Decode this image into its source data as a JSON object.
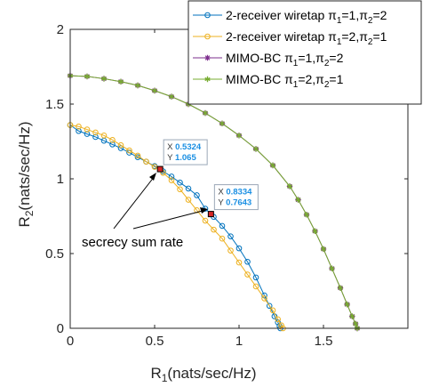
{
  "chart_data": {
    "type": "line",
    "xlabel_main": "R",
    "xlabel_sub": "1",
    "xlabel_unit": "(nats/sec/Hz)",
    "ylabel_main": "R",
    "ylabel_sub": "2",
    "ylabel_unit": "(nats/sec/Hz)",
    "xlim": [
      0,
      2
    ],
    "ylim": [
      0,
      2
    ],
    "xticks": [
      0,
      0.5,
      1,
      1.5
    ],
    "yticks": [
      0,
      0.5,
      1,
      1.5,
      2
    ],
    "xtick_labels": [
      "0",
      "0.5",
      "1",
      "1.5"
    ],
    "ytick_labels": [
      "0",
      "0.5",
      "1",
      "1.5",
      "2"
    ],
    "grid": false,
    "legend_position": "top-right",
    "series": [
      {
        "name": "2-receiver wiretap π1=1,π2=2",
        "legend": {
          "base": "2-receiver wiretap ",
          "pi": "π",
          "s1": "1",
          "mid": "=1,",
          "s2": "2",
          "end": "=2"
        },
        "color": "#0072BD",
        "marker": "circle",
        "x": [
          0.0,
          0.05,
          0.1,
          0.15,
          0.2,
          0.25,
          0.3,
          0.35,
          0.4,
          0.45,
          0.5,
          0.5324,
          0.55,
          0.6,
          0.65,
          0.7,
          0.75,
          0.8,
          0.8334,
          0.85,
          0.9,
          0.95,
          1.0,
          1.05,
          1.1,
          1.15,
          1.18,
          1.21,
          1.23,
          1.24,
          1.245
        ],
        "y": [
          1.36,
          1.32,
          1.3,
          1.28,
          1.255,
          1.23,
          1.205,
          1.175,
          1.145,
          1.115,
          1.085,
          1.065,
          1.05,
          1.015,
          0.975,
          0.935,
          0.89,
          0.8,
          0.7643,
          0.745,
          0.685,
          0.615,
          0.535,
          0.445,
          0.34,
          0.22,
          0.15,
          0.08,
          0.04,
          0.015,
          0.0
        ]
      },
      {
        "name": "2-receiver wiretap π1=2,π2=1",
        "legend": {
          "base": "2-receiver wiretap ",
          "pi": "π",
          "s1": "1",
          "mid": "=2,",
          "s2": "2",
          "end": "=1"
        },
        "color": "#EDB120",
        "marker": "circle",
        "x": [
          0.0,
          0.05,
          0.1,
          0.15,
          0.2,
          0.25,
          0.3,
          0.35,
          0.4,
          0.45,
          0.5,
          0.5324,
          0.55,
          0.6,
          0.65,
          0.7,
          0.75,
          0.8,
          0.85,
          0.9,
          0.95,
          1.0,
          1.05,
          1.1,
          1.15,
          1.2,
          1.23,
          1.25,
          1.26
        ],
        "y": [
          1.36,
          1.35,
          1.33,
          1.31,
          1.29,
          1.26,
          1.225,
          1.19,
          1.155,
          1.115,
          1.08,
          1.065,
          1.04,
          0.99,
          0.93,
          0.86,
          0.79,
          0.72,
          0.66,
          0.6,
          0.52,
          0.44,
          0.36,
          0.28,
          0.2,
          0.12,
          0.06,
          0.02,
          0.0
        ]
      },
      {
        "name": "MIMO-BC π1=1,π2=2",
        "legend": {
          "base": "MIMO-BC ",
          "pi": "π",
          "s1": "1",
          "mid": "=1,",
          "s2": "2",
          "end": "=2"
        },
        "color": "#7E2F8E",
        "marker": "star",
        "x": [
          0.0,
          0.1,
          0.2,
          0.3,
          0.4,
          0.5,
          0.6,
          0.7,
          0.8,
          0.9,
          1.0,
          1.1,
          1.2,
          1.3,
          1.35,
          1.4,
          1.45,
          1.5,
          1.55,
          1.6,
          1.64,
          1.67,
          1.69,
          1.7
        ],
        "y": [
          1.69,
          1.685,
          1.67,
          1.65,
          1.625,
          1.59,
          1.55,
          1.5,
          1.44,
          1.37,
          1.29,
          1.2,
          1.09,
          0.95,
          0.86,
          0.76,
          0.65,
          0.53,
          0.4,
          0.27,
          0.16,
          0.08,
          0.03,
          0.0
        ]
      },
      {
        "name": "MIMO-BC π1=2,π2=1",
        "legend": {
          "base": "MIMO-BC ",
          "pi": "π",
          "s1": "1",
          "mid": "=2,",
          "s2": "2",
          "end": "=1"
        },
        "color": "#77AC30",
        "marker": "asterisk",
        "x": [
          0.0,
          0.1,
          0.2,
          0.3,
          0.4,
          0.5,
          0.6,
          0.7,
          0.8,
          0.9,
          1.0,
          1.1,
          1.2,
          1.3,
          1.35,
          1.4,
          1.45,
          1.5,
          1.55,
          1.6,
          1.64,
          1.67,
          1.69,
          1.7
        ],
        "y": [
          1.69,
          1.685,
          1.67,
          1.65,
          1.625,
          1.59,
          1.55,
          1.5,
          1.44,
          1.37,
          1.29,
          1.2,
          1.09,
          0.95,
          0.86,
          0.76,
          0.65,
          0.53,
          0.4,
          0.27,
          0.16,
          0.08,
          0.03,
          0.0
        ]
      }
    ],
    "datatips": [
      {
        "x": 0.5324,
        "y": 1.065,
        "x_label": "X",
        "y_label": "Y",
        "x_text": "0.5324",
        "y_text": "1.065"
      },
      {
        "x": 0.8334,
        "y": 0.7643,
        "x_label": "X",
        "y_label": "Y",
        "x_text": "0.8334",
        "y_text": "0.7643"
      }
    ],
    "annotation": {
      "text": "secrecy sum rate"
    }
  }
}
